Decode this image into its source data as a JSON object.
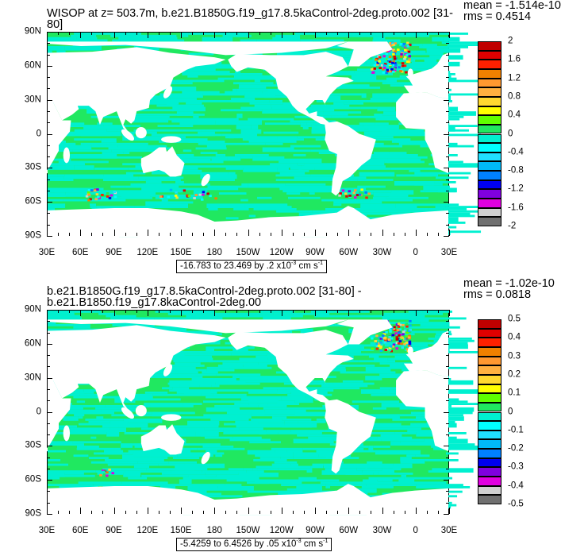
{
  "panels": [
    {
      "title": "WISOP at z= 503.7m, b.e21.B1850G.f19_g17.8.5kaControl-2deg.proto.002 [31-80]",
      "mean": "mean = -1.514e-10",
      "rms": "rms = 0.4514",
      "info": {
        "range": "-16.783 to 23.469 by .2 x10",
        "exp": "-3",
        "unit": " cm s",
        "unit_exp": "-1"
      },
      "colorbar_labels": [
        "2",
        "1.6",
        "1.2",
        "0.8",
        "0.4",
        "0",
        "-0.4",
        "-0.8",
        "-1.2",
        "-1.6",
        "-2"
      ],
      "contour_levels": {
        "min": -2,
        "max": 2,
        "step": 0.2
      }
    },
    {
      "title": "b.e21.B1850G.f19_g17.8.5kaControl-2deg.proto.002 [31-80] - b.e21.B1850.f19_g17.8kaControl-2deg.00",
      "mean": "mean = -1.02e-10",
      "rms": "rms = 0.0818",
      "info": {
        "range": "-5.4259 to 6.4526 by .05 x10",
        "exp": "-3",
        "unit": " cm s",
        "unit_exp": "-1"
      },
      "colorbar_labels": [
        "0.5",
        "0.4",
        "0.3",
        "0.2",
        "0.1",
        "0",
        "-0.1",
        "-0.2",
        "-0.3",
        "-0.4",
        "-0.5"
      ],
      "contour_levels": {
        "min": -0.5,
        "max": 0.5,
        "step": 0.05
      }
    }
  ],
  "lat_labels": [
    "90N",
    "60N",
    "30N",
    "0",
    "30S",
    "60S",
    "90S"
  ],
  "lon_labels": [
    "30E",
    "60E",
    "90E",
    "120E",
    "150E",
    "180",
    "150W",
    "120W",
    "90W",
    "60W",
    "30W",
    "0",
    "30E"
  ],
  "colors": [
    "#c00000",
    "#e00000",
    "#ff2000",
    "#f08000",
    "#ff9830",
    "#ffb040",
    "#ffd830",
    "#ffff00",
    "#60ff00",
    "#20e860",
    "#00f0d0",
    "#00ffff",
    "#20e0ff",
    "#00b8f8",
    "#0080ff",
    "#0000f0",
    "#8000e0",
    "#e000e0",
    "#d0d0d0",
    "#707070"
  ],
  "map_colors": {
    "ocean_positive": "#20e860",
    "ocean_negative": "#00f0d0",
    "land": "#ffffff"
  }
}
